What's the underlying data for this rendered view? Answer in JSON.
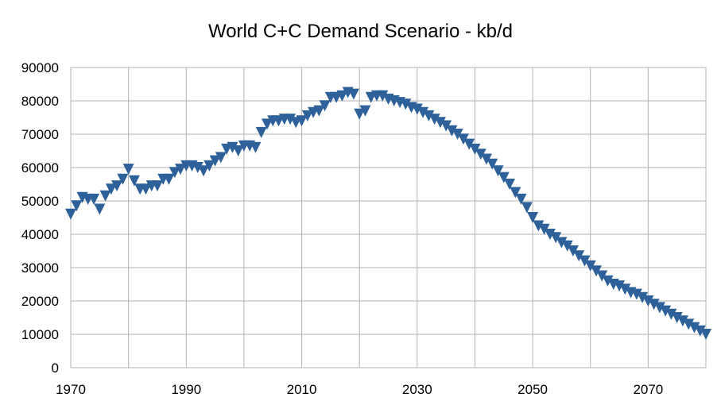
{
  "chart_data": {
    "type": "scatter",
    "title": "World C+C Demand Scenario - kb/d",
    "xlabel": "",
    "ylabel": "",
    "xlim": [
      1970,
      2080
    ],
    "ylim": [
      0,
      90000
    ],
    "x_ticks": [
      1970,
      1990,
      2010,
      2030,
      2050,
      2070
    ],
    "y_ticks": [
      0,
      10000,
      20000,
      30000,
      40000,
      50000,
      60000,
      70000,
      80000,
      90000
    ],
    "grid": true,
    "legend": "none",
    "marker": "triangle-down",
    "marker_color": "#2e6199",
    "series": [
      {
        "x": [
          1970,
          1971,
          1972,
          1973,
          1974,
          1975,
          1976,
          1977,
          1978,
          1979,
          1980,
          1981,
          1982,
          1983,
          1984,
          1985,
          1986,
          1987,
          1988,
          1989,
          1990,
          1991,
          1992,
          1993,
          1994,
          1995,
          1996,
          1997,
          1998,
          1999,
          2000,
          2001,
          2002,
          2003,
          2004,
          2005,
          2006,
          2007,
          2008,
          2009,
          2010,
          2011,
          2012,
          2013,
          2014,
          2015,
          2016,
          2017,
          2018,
          2019,
          2020,
          2021,
          2022,
          2023,
          2024,
          2025,
          2026,
          2027,
          2028,
          2029,
          2030,
          2031,
          2032,
          2033,
          2034,
          2035,
          2036,
          2037,
          2038,
          2039,
          2040,
          2041,
          2042,
          2043,
          2044,
          2045,
          2046,
          2047,
          2048,
          2049,
          2050,
          2051,
          2052,
          2053,
          2054,
          2055,
          2056,
          2057,
          2058,
          2059,
          2060,
          2061,
          2062,
          2063,
          2064,
          2065,
          2066,
          2067,
          2068,
          2069,
          2070,
          2071,
          2072,
          2073,
          2074,
          2075,
          2076,
          2077,
          2078,
          2079,
          2080
        ],
        "y": [
          46000,
          48500,
          51000,
          50500,
          50500,
          47500,
          51500,
          53500,
          54500,
          56500,
          59500,
          56000,
          53500,
          53500,
          54500,
          54500,
          56500,
          56500,
          58500,
          59500,
          60500,
          60500,
          60000,
          59000,
          60500,
          62000,
          63000,
          65500,
          66000,
          65000,
          66500,
          66500,
          66000,
          70500,
          73000,
          74000,
          74000,
          74500,
          74500,
          73500,
          74000,
          75500,
          76500,
          77000,
          78500,
          81000,
          81000,
          81500,
          82500,
          82000,
          76000,
          77000,
          81000,
          81500,
          81500,
          80500,
          80000,
          79500,
          79000,
          78000,
          77500,
          76500,
          75500,
          74500,
          73500,
          72500,
          71000,
          70000,
          68500,
          67000,
          65500,
          64000,
          62500,
          61000,
          59000,
          57000,
          55000,
          52500,
          50500,
          48000,
          45000,
          42500,
          41500,
          40000,
          39000,
          37500,
          36500,
          35000,
          33500,
          32000,
          30500,
          29000,
          27500,
          26000,
          25000,
          24500,
          23500,
          22500,
          22000,
          21000,
          20000,
          19000,
          18000,
          17000,
          16000,
          15000,
          14000,
          13000,
          12000,
          11000,
          10000
        ]
      }
    ]
  }
}
